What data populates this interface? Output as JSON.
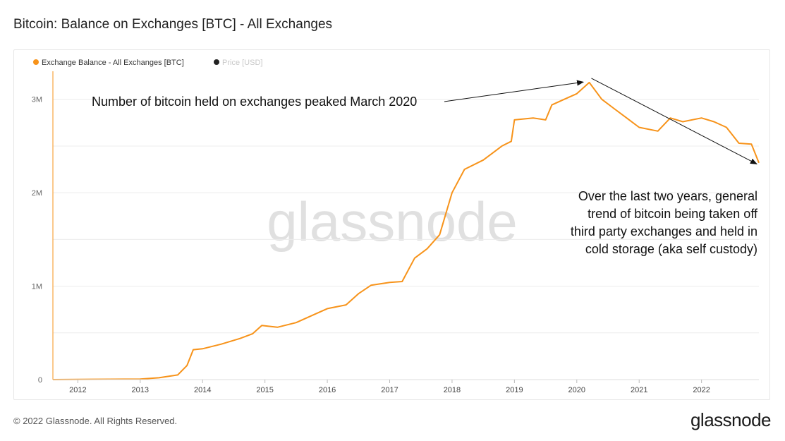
{
  "page": {
    "title": "Bitcoin: Balance on Exchanges [BTC] - All Exchanges",
    "copyright": "© 2022 Glassnode. All Rights Reserved.",
    "logo": "glassnode",
    "watermark": "glassnode"
  },
  "chart_data": {
    "type": "line",
    "title": "Bitcoin: Balance on Exchanges [BTC] - All Exchanges",
    "xlabel": "",
    "ylabel": "",
    "legend_placement": "top-left",
    "grid": true,
    "xlim": [
      2011.6,
      2022.92
    ],
    "ylim": [
      0,
      3300000
    ],
    "y_ticks": [
      {
        "value": 0,
        "label": "0"
      },
      {
        "value": 1000000,
        "label": "1M"
      },
      {
        "value": 2000000,
        "label": "2M"
      },
      {
        "value": 3000000,
        "label": "3M"
      }
    ],
    "x_ticks": [
      {
        "value": 2012,
        "label": "2012"
      },
      {
        "value": 2013,
        "label": "2013"
      },
      {
        "value": 2014,
        "label": "2014"
      },
      {
        "value": 2015,
        "label": "2015"
      },
      {
        "value": 2016,
        "label": "2016"
      },
      {
        "value": 2017,
        "label": "2017"
      },
      {
        "value": 2018,
        "label": "2018"
      },
      {
        "value": 2019,
        "label": "2019"
      },
      {
        "value": 2020,
        "label": "2020"
      },
      {
        "value": 2021,
        "label": "2021"
      },
      {
        "value": 2022,
        "label": "2022"
      }
    ],
    "series": [
      {
        "name": "Exchange Balance - All Exchanges [BTC]",
        "color": "#f7931a",
        "points": [
          [
            2011.6,
            0
          ],
          [
            2012.0,
            2000
          ],
          [
            2012.5,
            4000
          ],
          [
            2013.0,
            6000
          ],
          [
            2013.3,
            20000
          ],
          [
            2013.6,
            50000
          ],
          [
            2013.75,
            150000
          ],
          [
            2013.85,
            320000
          ],
          [
            2014.0,
            330000
          ],
          [
            2014.3,
            380000
          ],
          [
            2014.6,
            440000
          ],
          [
            2014.8,
            490000
          ],
          [
            2014.95,
            580000
          ],
          [
            2015.2,
            560000
          ],
          [
            2015.5,
            610000
          ],
          [
            2015.8,
            700000
          ],
          [
            2016.0,
            760000
          ],
          [
            2016.3,
            800000
          ],
          [
            2016.5,
            920000
          ],
          [
            2016.7,
            1010000
          ],
          [
            2017.0,
            1040000
          ],
          [
            2017.2,
            1050000
          ],
          [
            2017.4,
            1300000
          ],
          [
            2017.6,
            1400000
          ],
          [
            2017.8,
            1550000
          ],
          [
            2018.0,
            2000000
          ],
          [
            2018.2,
            2250000
          ],
          [
            2018.5,
            2350000
          ],
          [
            2018.8,
            2500000
          ],
          [
            2018.95,
            2550000
          ],
          [
            2019.0,
            2780000
          ],
          [
            2019.3,
            2800000
          ],
          [
            2019.5,
            2780000
          ],
          [
            2019.6,
            2940000
          ],
          [
            2019.8,
            3000000
          ],
          [
            2020.0,
            3060000
          ],
          [
            2020.2,
            3180000
          ],
          [
            2020.4,
            3000000
          ],
          [
            2020.6,
            2900000
          ],
          [
            2020.8,
            2800000
          ],
          [
            2021.0,
            2700000
          ],
          [
            2021.3,
            2660000
          ],
          [
            2021.5,
            2800000
          ],
          [
            2021.7,
            2760000
          ],
          [
            2022.0,
            2800000
          ],
          [
            2022.2,
            2760000
          ],
          [
            2022.4,
            2700000
          ],
          [
            2022.6,
            2530000
          ],
          [
            2022.8,
            2520000
          ],
          [
            2022.92,
            2320000
          ]
        ]
      },
      {
        "name": "Price [USD]",
        "color": "#222222",
        "legend_text_color": "#c8c8c8",
        "hidden": true,
        "points": []
      }
    ],
    "annotations": [
      {
        "text": "Number of bitcoin held on exchanges peaked March 2020",
        "arrow_to": [
          2020.15,
          3200000
        ]
      },
      {
        "lines": [
          "Over the last two years, general",
          "trend of bitcoin being taken off",
          "third party exchanges and held in",
          "cold storage (aka self custody)"
        ],
        "arrow_from": [
          2020.2,
          3180000
        ],
        "arrow_to": [
          2022.92,
          2300000
        ]
      }
    ]
  }
}
